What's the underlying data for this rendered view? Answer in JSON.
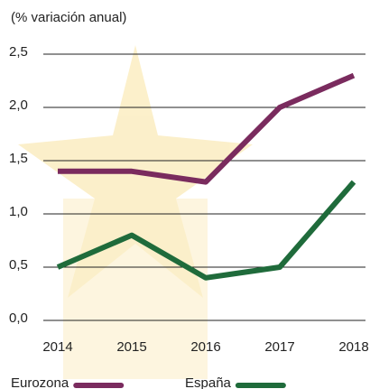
{
  "chart_data": {
    "type": "line",
    "subtitle": "(% variación anual)",
    "categories": [
      "2014",
      "2015",
      "2016",
      "2017",
      "2018"
    ],
    "series": [
      {
        "name": "Eurozona",
        "color": "#7a2b5e",
        "values": [
          1.4,
          1.4,
          1.3,
          2.0,
          2.3
        ]
      },
      {
        "name": "España",
        "color": "#1f6b3b",
        "values": [
          0.5,
          0.8,
          0.4,
          0.5,
          1.3
        ]
      }
    ],
    "ylim": [
      0,
      2.5
    ],
    "yticks": [
      {
        "value": 0,
        "label": "0,0"
      },
      {
        "value": 0.5,
        "label": "0,5"
      },
      {
        "value": 1,
        "label": "1,0"
      },
      {
        "value": 1.5,
        "label": "1,5"
      },
      {
        "value": 2,
        "label": "2,0"
      },
      {
        "value": 2.5,
        "label": "2,5"
      }
    ],
    "grid": true
  }
}
